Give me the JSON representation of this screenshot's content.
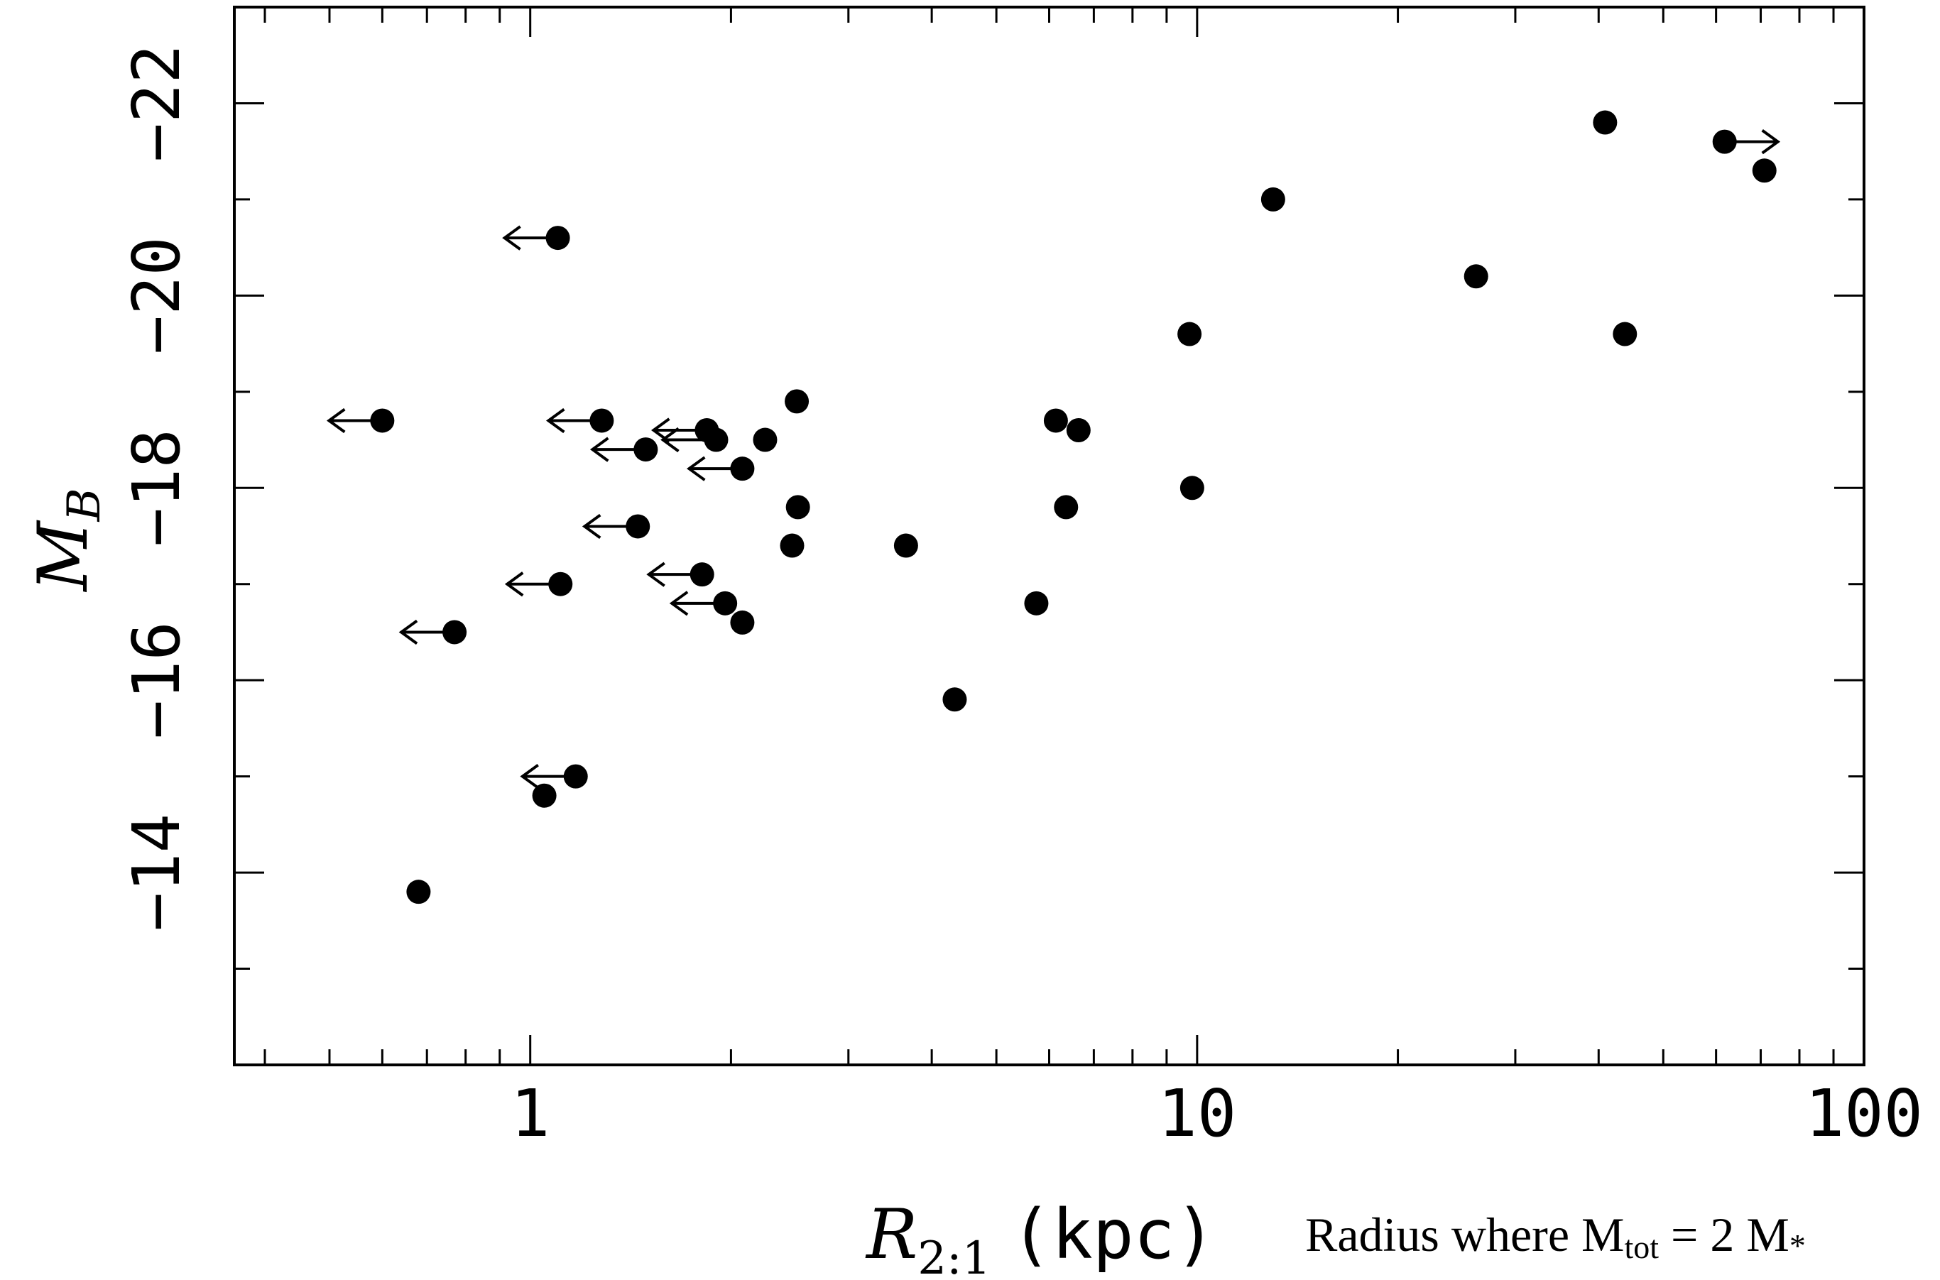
{
  "chart_data": {
    "type": "scatter",
    "title": "",
    "xlabel": {
      "main": "R",
      "sub": "2:1",
      "unit": "(kpc)"
    },
    "ylabel": {
      "main": "M",
      "sub": "B"
    },
    "xscale": "log",
    "xlim": [
      0.36,
      100
    ],
    "ylim": [
      -12.0,
      -23.0
    ],
    "yaxis_inverted": true,
    "x_ticks": [
      1,
      10,
      100
    ],
    "x_tick_labels": [
      "1",
      "10",
      "100"
    ],
    "y_ticks": [
      -14,
      -16,
      -18,
      -20,
      -22
    ],
    "y_tick_labels": [
      "−14",
      "−16",
      "−18",
      "−20",
      "−22"
    ],
    "grid": false,
    "legend": "none",
    "annotation": {
      "prefix": "Radius where M",
      "sub1": "tot",
      "mid": " = 2 M",
      "sub2": "*"
    },
    "points": [
      {
        "x": 0.6,
        "y": -18.7,
        "limit": "upper"
      },
      {
        "x": 0.68,
        "y": -13.8,
        "limit": "none"
      },
      {
        "x": 0.77,
        "y": -16.5,
        "limit": "upper"
      },
      {
        "x": 1.05,
        "y": -14.8,
        "limit": "none"
      },
      {
        "x": 1.1,
        "y": -20.6,
        "limit": "upper"
      },
      {
        "x": 1.11,
        "y": -17.0,
        "limit": "upper"
      },
      {
        "x": 1.17,
        "y": -15.0,
        "limit": "upper"
      },
      {
        "x": 1.28,
        "y": -18.7,
        "limit": "upper"
      },
      {
        "x": 1.45,
        "y": -17.6,
        "limit": "upper"
      },
      {
        "x": 1.49,
        "y": -18.4,
        "limit": "upper"
      },
      {
        "x": 1.81,
        "y": -17.1,
        "limit": "upper"
      },
      {
        "x": 1.84,
        "y": -18.6,
        "limit": "upper"
      },
      {
        "x": 1.9,
        "y": -18.5,
        "limit": "upper"
      },
      {
        "x": 1.96,
        "y": -16.8,
        "limit": "upper"
      },
      {
        "x": 2.08,
        "y": -18.2,
        "limit": "upper"
      },
      {
        "x": 2.08,
        "y": -16.6,
        "limit": "none"
      },
      {
        "x": 2.25,
        "y": -18.5,
        "limit": "none"
      },
      {
        "x": 2.47,
        "y": -17.4,
        "limit": "none"
      },
      {
        "x": 2.51,
        "y": -18.9,
        "limit": "none"
      },
      {
        "x": 2.52,
        "y": -17.8,
        "limit": "none"
      },
      {
        "x": 3.66,
        "y": -17.4,
        "limit": "none"
      },
      {
        "x": 4.33,
        "y": -15.8,
        "limit": "none"
      },
      {
        "x": 5.74,
        "y": -16.8,
        "limit": "none"
      },
      {
        "x": 6.14,
        "y": -18.7,
        "limit": "none"
      },
      {
        "x": 6.36,
        "y": -17.8,
        "limit": "none"
      },
      {
        "x": 6.64,
        "y": -18.6,
        "limit": "none"
      },
      {
        "x": 9.74,
        "y": -19.6,
        "limit": "none"
      },
      {
        "x": 9.83,
        "y": -18.0,
        "limit": "none"
      },
      {
        "x": 13.0,
        "y": -21.0,
        "limit": "none"
      },
      {
        "x": 26.2,
        "y": -20.2,
        "limit": "none"
      },
      {
        "x": 40.9,
        "y": -21.8,
        "limit": "none"
      },
      {
        "x": 43.8,
        "y": -19.6,
        "limit": "none"
      },
      {
        "x": 61.8,
        "y": -21.6,
        "limit": "lower"
      },
      {
        "x": 70.9,
        "y": -21.3,
        "limit": "none"
      }
    ]
  }
}
